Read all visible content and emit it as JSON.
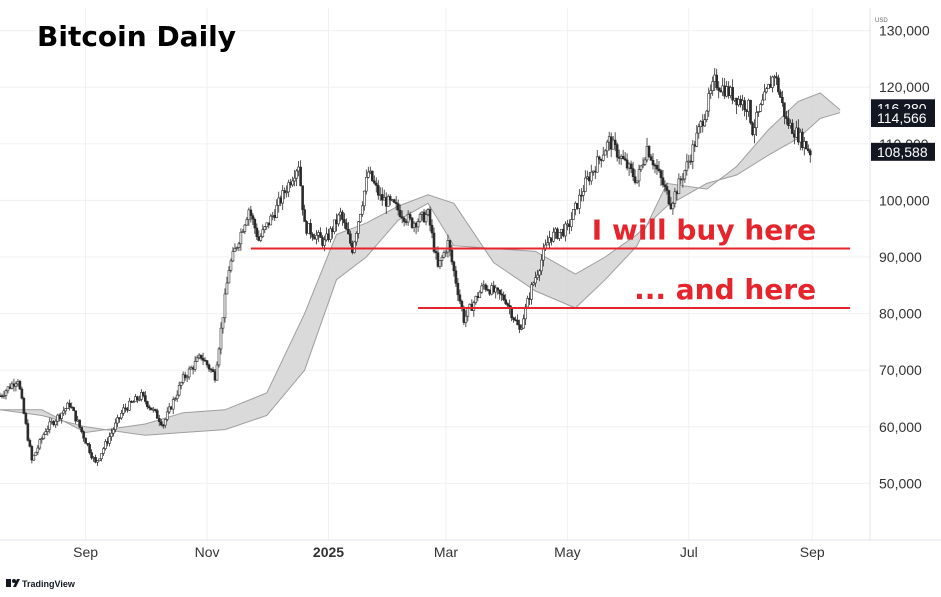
{
  "chart_data": {
    "type": "candlestick",
    "title": "Bitcoin Daily",
    "y_unit": "USD",
    "ylim": [
      40000,
      134000
    ],
    "y_ticks": [
      "130,000",
      "120,000",
      "110,000",
      "100,000",
      "90,000",
      "80,000",
      "70,000",
      "60,000",
      "50,000"
    ],
    "y_tick_values": [
      130000,
      120000,
      110000,
      100000,
      90000,
      80000,
      70000,
      60000,
      50000
    ],
    "x_ticks": [
      {
        "label": "Sep",
        "date": "2024-09-01",
        "bold": false
      },
      {
        "label": "Nov",
        "date": "2024-11-01",
        "bold": false
      },
      {
        "label": "2025",
        "date": "2025-01-01",
        "bold": true
      },
      {
        "label": "Mar",
        "date": "2025-03-01",
        "bold": false
      },
      {
        "label": "May",
        "date": "2025-05-01",
        "bold": false
      },
      {
        "label": "Jul",
        "date": "2025-07-01",
        "bold": false
      },
      {
        "label": "Sep",
        "date": "2025-09-01",
        "bold": false
      }
    ],
    "xlim": [
      "2024-07-20",
      "2025-09-30"
    ],
    "price_path": [
      [
        "2024-07-20",
        65500
      ],
      [
        "2024-07-29",
        68500
      ],
      [
        "2024-08-05",
        54000
      ],
      [
        "2024-08-12",
        59500
      ],
      [
        "2024-08-24",
        64000
      ],
      [
        "2024-09-06",
        53500
      ],
      [
        "2024-09-20",
        63000
      ],
      [
        "2024-09-29",
        65500
      ],
      [
        "2024-10-10",
        60500
      ],
      [
        "2024-10-20",
        68500
      ],
      [
        "2024-10-29",
        72500
      ],
      [
        "2024-11-05",
        69000
      ],
      [
        "2024-11-12",
        88000
      ],
      [
        "2024-11-22",
        98500
      ],
      [
        "2024-11-27",
        93000
      ],
      [
        "2024-12-05",
        98000
      ],
      [
        "2024-12-17",
        106500
      ],
      [
        "2024-12-20",
        95500
      ],
      [
        "2024-12-30",
        92500
      ],
      [
        "2025-01-07",
        97500
      ],
      [
        "2025-01-13",
        91500
      ],
      [
        "2025-01-21",
        105000
      ],
      [
        "2025-01-27",
        100500
      ],
      [
        "2025-02-03",
        99000
      ],
      [
        "2025-02-12",
        96000
      ],
      [
        "2025-02-20",
        97500
      ],
      [
        "2025-02-25",
        88000
      ],
      [
        "2025-03-02",
        92500
      ],
      [
        "2025-03-10",
        79000
      ],
      [
        "2025-03-20",
        85000
      ],
      [
        "2025-03-31",
        82500
      ],
      [
        "2025-04-07",
        77000
      ],
      [
        "2025-04-13",
        84500
      ],
      [
        "2025-04-22",
        93500
      ],
      [
        "2025-05-01",
        95000
      ],
      [
        "2025-05-10",
        103000
      ],
      [
        "2025-05-22",
        110500
      ],
      [
        "2025-06-05",
        103500
      ],
      [
        "2025-06-10",
        109500
      ],
      [
        "2025-06-22",
        99500
      ],
      [
        "2025-07-01",
        107000
      ],
      [
        "2025-07-10",
        116500
      ],
      [
        "2025-07-14",
        121000
      ],
      [
        "2025-07-31",
        116500
      ],
      [
        "2025-08-02",
        112500
      ],
      [
        "2025-08-13",
        122500
      ],
      [
        "2025-08-19",
        114000
      ],
      [
        "2025-08-25",
        111500
      ],
      [
        "2025-08-31",
        108588
      ]
    ],
    "cloud_span_a": [
      [
        "2024-07-20",
        63000
      ],
      [
        "2024-08-10",
        63000
      ],
      [
        "2024-09-01",
        59000
      ],
      [
        "2024-10-01",
        60500
      ],
      [
        "2024-10-20",
        62500
      ],
      [
        "2024-11-10",
        63000
      ],
      [
        "2024-12-01",
        66000
      ],
      [
        "2024-12-20",
        80000
      ],
      [
        "2025-01-05",
        94000
      ],
      [
        "2025-01-20",
        96000
      ],
      [
        "2025-02-05",
        99000
      ],
      [
        "2025-02-20",
        101000
      ],
      [
        "2025-03-05",
        99500
      ],
      [
        "2025-03-25",
        89000
      ],
      [
        "2025-04-15",
        84000
      ],
      [
        "2025-05-05",
        81000
      ],
      [
        "2025-05-20",
        86000
      ],
      [
        "2025-06-05",
        92000
      ],
      [
        "2025-06-20",
        103000
      ],
      [
        "2025-07-10",
        102000
      ],
      [
        "2025-07-25",
        106000
      ],
      [
        "2025-08-10",
        112500
      ],
      [
        "2025-08-25",
        117500
      ],
      [
        "2025-09-05",
        119000
      ],
      [
        "2025-09-15",
        116000
      ]
    ],
    "cloud_span_b": [
      [
        "2024-07-20",
        63000
      ],
      [
        "2024-08-10",
        62000
      ],
      [
        "2024-09-01",
        60000
      ],
      [
        "2024-10-01",
        58500
      ],
      [
        "2024-10-20",
        59000
      ],
      [
        "2024-11-10",
        59500
      ],
      [
        "2024-12-01",
        62000
      ],
      [
        "2024-12-20",
        70000
      ],
      [
        "2025-01-05",
        86000
      ],
      [
        "2025-01-20",
        90000
      ],
      [
        "2025-02-05",
        96500
      ],
      [
        "2025-02-20",
        99500
      ],
      [
        "2025-03-05",
        92000
      ],
      [
        "2025-03-25",
        91500
      ],
      [
        "2025-04-15",
        91000
      ],
      [
        "2025-05-05",
        87000
      ],
      [
        "2025-05-20",
        90000
      ],
      [
        "2025-06-05",
        94000
      ],
      [
        "2025-06-20",
        99000
      ],
      [
        "2025-07-10",
        103000
      ],
      [
        "2025-07-25",
        104500
      ],
      [
        "2025-08-10",
        108000
      ],
      [
        "2025-08-25",
        111000
      ],
      [
        "2025-09-05",
        114500
      ],
      [
        "2025-09-15",
        115500
      ]
    ],
    "annotations": [
      {
        "text": "I will buy here",
        "level": 91500,
        "from": "2024-11-23",
        "to": "2025-09-20"
      },
      {
        "text": "... and here",
        "level": 81000,
        "from": "2025-02-15",
        "to": "2025-09-20"
      }
    ],
    "price_tags": [
      {
        "text": "116,280",
        "value": 116280,
        "color": "#131722"
      },
      {
        "text": "114,566",
        "value": 114566,
        "color": "#131722"
      },
      {
        "text": "108,588",
        "value": 108588,
        "color": "#131722"
      }
    ],
    "colors": {
      "candle": "#2a2a2a",
      "cloud_fill": "#d4d4d4",
      "cloud_line": "#9e9e9e",
      "annotation": "#e5242b",
      "grid": "#f0f0f0"
    }
  },
  "brand": {
    "name": "TradingView"
  }
}
